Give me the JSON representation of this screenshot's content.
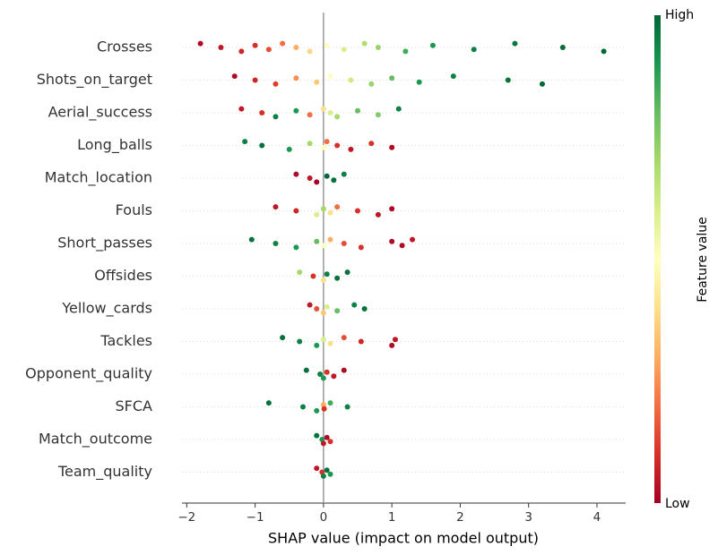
{
  "chart_data": {
    "type": "beeswarm",
    "xlabel": "SHAP value (impact on model output)",
    "xlim": [
      -2.07,
      4.42
    ],
    "xticks": [
      {
        "value": -2,
        "label": "−2"
      },
      {
        "value": -1,
        "label": "−1"
      },
      0,
      1,
      2,
      3,
      4
    ],
    "colorbar": {
      "label": "Feature value",
      "high": "High",
      "low": "Low",
      "colors": [
        "#a50026",
        "#d73027",
        "#f46d43",
        "#fdae61",
        "#fee08b",
        "#ffffbf",
        "#d9ef8b",
        "#a6d96a",
        "#66bd63",
        "#1a9850",
        "#006837"
      ]
    },
    "rows": [
      {
        "name": "Crosses",
        "shap": [
          -1.8,
          -1.5,
          -1.2,
          -1.0,
          -0.8,
          -0.6,
          -0.4,
          -0.2,
          0.05,
          0.3,
          0.6,
          0.8,
          1.2,
          1.6,
          2.2,
          2.8,
          3.5,
          4.1
        ],
        "feature_value": [
          0.02,
          0.05,
          0.08,
          0.1,
          0.15,
          0.2,
          0.3,
          0.38,
          0.5,
          0.6,
          0.68,
          0.72,
          0.85,
          0.9,
          0.95,
          0.97,
          0.99,
          1.0
        ]
      },
      {
        "name": "Shots_on_target",
        "shap": [
          -1.3,
          -1.0,
          -0.7,
          -0.4,
          -0.1,
          0.1,
          0.4,
          0.7,
          1.0,
          1.4,
          1.9,
          2.7,
          3.2
        ],
        "feature_value": [
          0.02,
          0.08,
          0.12,
          0.25,
          0.35,
          0.5,
          0.62,
          0.72,
          0.8,
          0.9,
          0.95,
          0.98,
          1.0
        ]
      },
      {
        "name": "Aerial_success",
        "shap": [
          -1.2,
          -0.9,
          -0.7,
          -0.4,
          -0.2,
          0,
          0.1,
          0.2,
          0.5,
          0.8,
          1.1
        ],
        "feature_value": [
          0.05,
          0.1,
          0.95,
          0.9,
          0.2,
          0.4,
          0.6,
          0.7,
          0.8,
          0.75,
          0.95
        ]
      },
      {
        "name": "Long_balls",
        "shap": [
          -1.15,
          -0.9,
          -0.5,
          -0.2,
          0,
          0.05,
          0.2,
          0.4,
          0.7,
          1.0
        ],
        "feature_value": [
          0.95,
          0.98,
          0.9,
          0.7,
          0.5,
          0.2,
          0.1,
          0.05,
          0.1,
          0.02
        ]
      },
      {
        "name": "Match_location",
        "shap": [
          -0.4,
          -0.2,
          -0.1,
          0.05,
          0.15,
          0.3
        ],
        "feature_value": [
          0.02,
          0.05,
          0.0,
          1.0,
          0.98,
          0.95
        ]
      },
      {
        "name": "Fouls",
        "shap": [
          -0.7,
          -0.4,
          -0.1,
          0,
          0.1,
          0.2,
          0.5,
          0.8,
          1.0
        ],
        "feature_value": [
          0.05,
          0.08,
          0.6,
          0.7,
          0.4,
          0.2,
          0.1,
          0.05,
          0.02
        ]
      },
      {
        "name": "Short_passes",
        "shap": [
          -1.05,
          -0.7,
          -0.4,
          -0.1,
          0,
          0.1,
          0.3,
          0.55,
          1.0,
          1.15,
          1.3
        ],
        "feature_value": [
          0.98,
          0.95,
          0.9,
          0.8,
          0.5,
          0.3,
          0.15,
          0.1,
          0.02,
          0.02,
          0.05
        ]
      },
      {
        "name": "Offsides",
        "shap": [
          -0.35,
          -0.15,
          0,
          0.05,
          0.2,
          0.35
        ],
        "feature_value": [
          0.7,
          0.1,
          0.4,
          0.95,
          0.98,
          0.98
        ]
      },
      {
        "name": "Yellow_cards",
        "shap": [
          -0.2,
          -0.1,
          0,
          0.05,
          0.2,
          0.45,
          0.6
        ],
        "feature_value": [
          0.05,
          0.15,
          0.35,
          0.6,
          0.8,
          0.95,
          0.98
        ]
      },
      {
        "name": "Tackles",
        "shap": [
          -0.6,
          -0.35,
          -0.1,
          0,
          0.1,
          0.3,
          0.55,
          1.0,
          1.05
        ],
        "feature_value": [
          0.98,
          0.95,
          0.9,
          0.6,
          0.4,
          0.15,
          0.08,
          0.02,
          0.05
        ]
      },
      {
        "name": "Opponent_quality",
        "shap": [
          -0.25,
          -0.05,
          0,
          0.05,
          0.15,
          0.3
        ],
        "feature_value": [
          0.98,
          0.95,
          0.9,
          0.1,
          0.05,
          0.02
        ]
      },
      {
        "name": "SFCA",
        "shap": [
          -0.8,
          -0.3,
          -0.1,
          0,
          0.01,
          0.1,
          0.35
        ],
        "feature_value": [
          0.98,
          0.95,
          0.9,
          0.3,
          0.1,
          0.85,
          0.95
        ]
      },
      {
        "name": "Match_outcome",
        "shap": [
          -0.1,
          -0.02,
          0,
          0.05,
          0.1
        ],
        "feature_value": [
          0.98,
          0.9,
          0.05,
          0.02,
          0.1
        ]
      },
      {
        "name": "Team_quality",
        "shap": [
          -0.1,
          -0.02,
          0,
          0.05,
          0.1
        ],
        "feature_value": [
          0.05,
          0.1,
          0.95,
          0.98,
          0.9
        ]
      }
    ]
  }
}
